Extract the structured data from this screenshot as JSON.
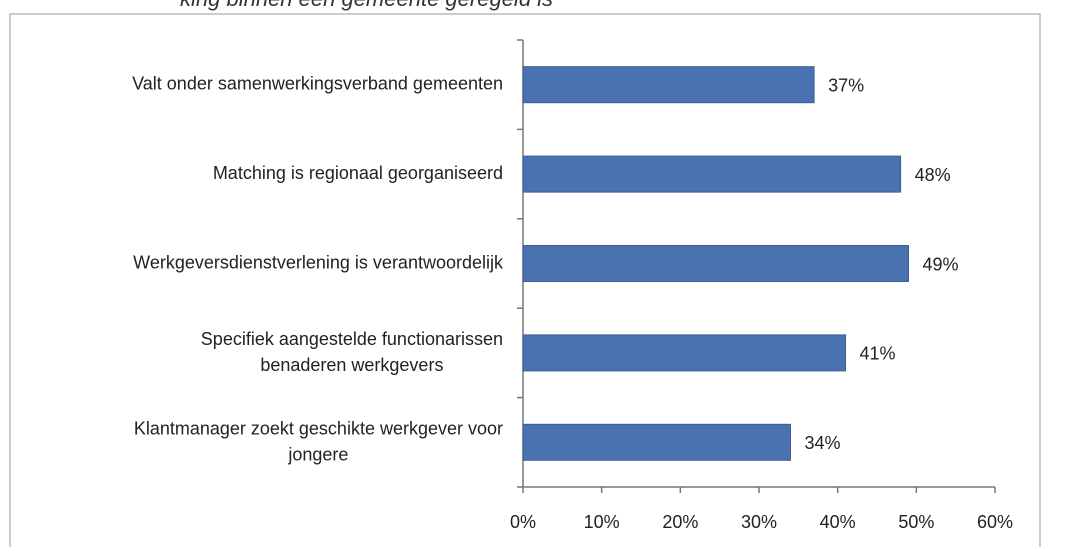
{
  "chart_data": {
    "type": "barh",
    "title": "king binnen een gemeente geregeld is",
    "categories": [
      "Valt onder samenwerkingsverband gemeenten",
      "Matching is regionaal georganiseerd",
      "Werkgeversdienstverlening is verantwoordelijk",
      "Specifiek aangestelde functionarissen\nbenaderen werkgevers",
      "Klantmanager zoekt geschikte werkgever voor\njongere"
    ],
    "values": [
      37,
      48,
      49,
      41,
      34
    ],
    "value_labels": [
      "37%",
      "48%",
      "49%",
      "41%",
      "34%"
    ],
    "color": "#4a72b0",
    "xlim": [
      0,
      60
    ],
    "xticks": [
      {
        "value": 0,
        "label": "0%"
      },
      {
        "value": 10,
        "label": "10%"
      },
      {
        "value": 20,
        "label": "20%"
      },
      {
        "value": 30,
        "label": "30%"
      },
      {
        "value": 40,
        "label": "40%"
      },
      {
        "value": 50,
        "label": "50%"
      },
      {
        "value": 60,
        "label": "60%"
      }
    ],
    "grid": false
  }
}
